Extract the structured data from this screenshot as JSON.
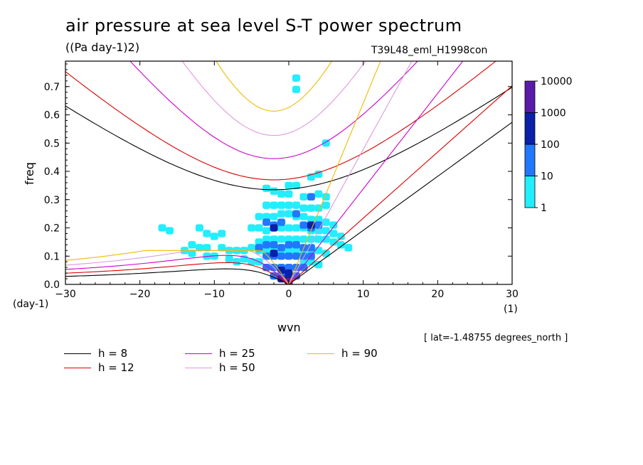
{
  "header": {
    "title": "air pressure at sea level S-T power spectrum",
    "units": "((Pa day-1)2)",
    "run_id": "T39L48_eml_H1998con"
  },
  "footer": {
    "lat_note": "[ lat=-1.48755 degrees_north ]"
  },
  "colorbar": {
    "levels": [
      "1",
      "10",
      "100",
      "1000",
      "10000"
    ],
    "colors": [
      "#22eeff",
      "#2277ff",
      "#0a1faa",
      "#5a1aaa"
    ]
  },
  "legend": {
    "items": [
      {
        "label": "h =  8",
        "color": "#000000"
      },
      {
        "label": "h = 12",
        "color": "#dd0000"
      },
      {
        "label": "h = 25",
        "color": "#cc00cc"
      },
      {
        "label": "h = 50",
        "color": "#dd99dd"
      },
      {
        "label": "h = 90",
        "color": "#eebb00"
      }
    ]
  },
  "chart_data": {
    "type": "heatmap",
    "title": "air pressure at sea level S-T power spectrum",
    "subtitle": "((Pa day-1)2)",
    "xlabel": "wvn",
    "ylabel": "freq",
    "x_unit": "(1)",
    "y_unit": "(day-1)",
    "xlim": [
      -30,
      30
    ],
    "ylim": [
      0,
      0.79
    ],
    "xticks": [
      "−30",
      "−20",
      "−10",
      "0",
      "10",
      "20",
      "30"
    ],
    "yticks": [
      "0.0",
      "0.1",
      "0.2",
      "0.3",
      "0.4",
      "0.5",
      "0.6",
      "0.7"
    ],
    "contour_levels": [
      1,
      10,
      100,
      1000,
      10000
    ],
    "dispersion_curves": {
      "equivalent_depths_m": [
        8,
        12,
        25,
        50,
        90
      ],
      "kelvin_min_freq_at_wvn": [
        0.335,
        0.37,
        0.445,
        0.527,
        0.613
      ]
    },
    "cells": [
      {
        "x": -17,
        "y": 0.2,
        "level": 1
      },
      {
        "x": -16,
        "y": 0.19,
        "level": 1
      },
      {
        "x": -12,
        "y": 0.2,
        "level": 1
      },
      {
        "x": -11,
        "y": 0.18,
        "level": 1
      },
      {
        "x": -10,
        "y": 0.17,
        "level": 1
      },
      {
        "x": -9,
        "y": 0.18,
        "level": 1
      },
      {
        "x": -13,
        "y": 0.14,
        "level": 1
      },
      {
        "x": -12,
        "y": 0.13,
        "level": 1
      },
      {
        "x": -11,
        "y": 0.13,
        "level": 1
      },
      {
        "x": -9,
        "y": 0.13,
        "level": 1
      },
      {
        "x": -8,
        "y": 0.12,
        "level": 1
      },
      {
        "x": -7,
        "y": 0.12,
        "level": 1
      },
      {
        "x": -14,
        "y": 0.12,
        "level": 1
      },
      {
        "x": -13,
        "y": 0.11,
        "level": 1
      },
      {
        "x": -11,
        "y": 0.1,
        "level": 1
      },
      {
        "x": -10,
        "y": 0.1,
        "level": 1
      },
      {
        "x": -8,
        "y": 0.09,
        "level": 1
      },
      {
        "x": -7,
        "y": 0.08,
        "level": 1
      },
      {
        "x": -6,
        "y": 0.09,
        "level": 1
      },
      {
        "x": -6,
        "y": 0.12,
        "level": 1
      },
      {
        "x": -5,
        "y": 0.13,
        "level": 1
      },
      {
        "x": -4,
        "y": 0.12,
        "level": 1
      },
      {
        "x": -5,
        "y": 0.2,
        "level": 1
      },
      {
        "x": -4,
        "y": 0.2,
        "level": 1
      },
      {
        "x": -3,
        "y": 0.19,
        "level": 1
      },
      {
        "x": -4,
        "y": 0.24,
        "level": 1
      },
      {
        "x": -3,
        "y": 0.24,
        "level": 1
      },
      {
        "x": -2,
        "y": 0.24,
        "level": 1
      },
      {
        "x": -3,
        "y": 0.28,
        "level": 1
      },
      {
        "x": -2,
        "y": 0.28,
        "level": 1
      },
      {
        "x": -1,
        "y": 0.28,
        "level": 1
      },
      {
        "x": 0,
        "y": 0.28,
        "level": 1
      },
      {
        "x": 1,
        "y": 0.28,
        "level": 1
      },
      {
        "x": 2,
        "y": 0.27,
        "level": 1
      },
      {
        "x": 3,
        "y": 0.27,
        "level": 1
      },
      {
        "x": 4,
        "y": 0.27,
        "level": 1
      },
      {
        "x": 5,
        "y": 0.28,
        "level": 1
      },
      {
        "x": 2,
        "y": 0.31,
        "level": 1
      },
      {
        "x": 3,
        "y": 0.31,
        "level": 1
      },
      {
        "x": 4,
        "y": 0.32,
        "level": 1
      },
      {
        "x": 5,
        "y": 0.31,
        "level": 1
      },
      {
        "x": 3,
        "y": 0.38,
        "level": 1
      },
      {
        "x": 4,
        "y": 0.39,
        "level": 1
      },
      {
        "x": 0,
        "y": 0.35,
        "level": 1
      },
      {
        "x": 1,
        "y": 0.35,
        "level": 1
      },
      {
        "x": 5,
        "y": 0.5,
        "level": 1
      },
      {
        "x": 1,
        "y": 0.73,
        "level": 1
      },
      {
        "x": 1,
        "y": 0.69,
        "level": 1
      },
      {
        "x": -3,
        "y": 0.34,
        "level": 1
      },
      {
        "x": -2,
        "y": 0.33,
        "level": 1
      },
      {
        "x": -1,
        "y": 0.32,
        "level": 1
      },
      {
        "x": 0,
        "y": 0.32,
        "level": 1
      },
      {
        "x": -1,
        "y": 0.25,
        "level": 1
      },
      {
        "x": 0,
        "y": 0.25,
        "level": 1
      },
      {
        "x": 1,
        "y": 0.24,
        "level": 1
      },
      {
        "x": 2,
        "y": 0.24,
        "level": 1
      },
      {
        "x": 3,
        "y": 0.23,
        "level": 1
      },
      {
        "x": 4,
        "y": 0.23,
        "level": 1
      },
      {
        "x": 5,
        "y": 0.22,
        "level": 1
      },
      {
        "x": 6,
        "y": 0.21,
        "level": 1
      },
      {
        "x": -2,
        "y": 0.2,
        "level": 1
      },
      {
        "x": -1,
        "y": 0.2,
        "level": 1
      },
      {
        "x": 0,
        "y": 0.2,
        "level": 1
      },
      {
        "x": 1,
        "y": 0.2,
        "level": 1
      },
      {
        "x": 2,
        "y": 0.2,
        "level": 1
      },
      {
        "x": 3,
        "y": 0.19,
        "level": 1
      },
      {
        "x": 4,
        "y": 0.19,
        "level": 1
      },
      {
        "x": 5,
        "y": 0.19,
        "level": 1
      },
      {
        "x": 6,
        "y": 0.18,
        "level": 1
      },
      {
        "x": 7,
        "y": 0.17,
        "level": 1
      },
      {
        "x": 6,
        "y": 0.15,
        "level": 1
      },
      {
        "x": 7,
        "y": 0.14,
        "level": 1
      },
      {
        "x": 8,
        "y": 0.13,
        "level": 1
      },
      {
        "x": -3,
        "y": 0.16,
        "level": 1
      },
      {
        "x": -2,
        "y": 0.16,
        "level": 1
      },
      {
        "x": -1,
        "y": 0.16,
        "level": 1
      },
      {
        "x": 0,
        "y": 0.16,
        "level": 1
      },
      {
        "x": 1,
        "y": 0.16,
        "level": 1
      },
      {
        "x": 2,
        "y": 0.16,
        "level": 1
      },
      {
        "x": 3,
        "y": 0.16,
        "level": 1
      },
      {
        "x": 4,
        "y": 0.16,
        "level": 1
      },
      {
        "x": 5,
        "y": 0.16,
        "level": 1
      },
      {
        "x": -4,
        "y": 0.15,
        "level": 1
      },
      {
        "x": -3,
        "y": 0.12,
        "level": 1
      },
      {
        "x": -2,
        "y": 0.12,
        "level": 1
      },
      {
        "x": -1,
        "y": 0.12,
        "level": 1
      },
      {
        "x": 0,
        "y": 0.12,
        "level": 1
      },
      {
        "x": 1,
        "y": 0.12,
        "level": 1
      },
      {
        "x": 2,
        "y": 0.12,
        "level": 1
      },
      {
        "x": 3,
        "y": 0.12,
        "level": 1
      },
      {
        "x": 4,
        "y": 0.12,
        "level": 1
      },
      {
        "x": 5,
        "y": 0.11,
        "level": 1
      },
      {
        "x": -5,
        "y": 0.08,
        "level": 1
      },
      {
        "x": -4,
        "y": 0.08,
        "level": 1
      },
      {
        "x": 2,
        "y": 0.08,
        "level": 1
      },
      {
        "x": 3,
        "y": 0.08,
        "level": 1
      },
      {
        "x": 4,
        "y": 0.07,
        "level": 1
      },
      {
        "x": -3,
        "y": 0.22,
        "level": 10
      },
      {
        "x": -2,
        "y": 0.21,
        "level": 10
      },
      {
        "x": -1,
        "y": 0.22,
        "level": 10
      },
      {
        "x": 2,
        "y": 0.21,
        "level": 10
      },
      {
        "x": 3,
        "y": 0.2,
        "level": 10
      },
      {
        "x": 4,
        "y": 0.21,
        "level": 10
      },
      {
        "x": 1,
        "y": 0.25,
        "level": 10
      },
      {
        "x": 3,
        "y": 0.31,
        "level": 10
      },
      {
        "x": -4,
        "y": 0.13,
        "level": 10
      },
      {
        "x": -3,
        "y": 0.14,
        "level": 10
      },
      {
        "x": -2,
        "y": 0.14,
        "level": 10
      },
      {
        "x": -1,
        "y": 0.13,
        "level": 10
      },
      {
        "x": 0,
        "y": 0.14,
        "level": 10
      },
      {
        "x": 1,
        "y": 0.14,
        "level": 10
      },
      {
        "x": 2,
        "y": 0.13,
        "level": 10
      },
      {
        "x": 3,
        "y": 0.13,
        "level": 10
      },
      {
        "x": -3,
        "y": 0.1,
        "level": 10
      },
      {
        "x": -2,
        "y": 0.1,
        "level": 10
      },
      {
        "x": -1,
        "y": 0.1,
        "level": 10
      },
      {
        "x": 0,
        "y": 0.1,
        "level": 10
      },
      {
        "x": 1,
        "y": 0.1,
        "level": 10
      },
      {
        "x": 2,
        "y": 0.1,
        "level": 10
      },
      {
        "x": 3,
        "y": 0.1,
        "level": 10
      },
      {
        "x": -3,
        "y": 0.06,
        "level": 10
      },
      {
        "x": -2,
        "y": 0.06,
        "level": 10
      },
      {
        "x": -1,
        "y": 0.06,
        "level": 10
      },
      {
        "x": 0,
        "y": 0.06,
        "level": 10
      },
      {
        "x": 1,
        "y": 0.06,
        "level": 10
      },
      {
        "x": 2,
        "y": 0.06,
        "level": 10
      },
      {
        "x": -2,
        "y": 0.03,
        "level": 10
      },
      {
        "x": -1,
        "y": 0.03,
        "level": 10
      },
      {
        "x": 0,
        "y": 0.03,
        "level": 10
      },
      {
        "x": 1,
        "y": 0.03,
        "level": 10
      },
      {
        "x": -2,
        "y": 0.2,
        "level": 100
      },
      {
        "x": 3,
        "y": 0.21,
        "level": 100
      },
      {
        "x": -2,
        "y": 0.11,
        "level": 100
      },
      {
        "x": -1,
        "y": 0.05,
        "level": 100
      },
      {
        "x": 0,
        "y": 0.04,
        "level": 100
      },
      {
        "x": 0,
        "y": 0.02,
        "level": 100
      },
      {
        "x": -1,
        "y": 0.02,
        "level": 100
      },
      {
        "x": 0,
        "y": 0.01,
        "level": 1000
      }
    ]
  }
}
